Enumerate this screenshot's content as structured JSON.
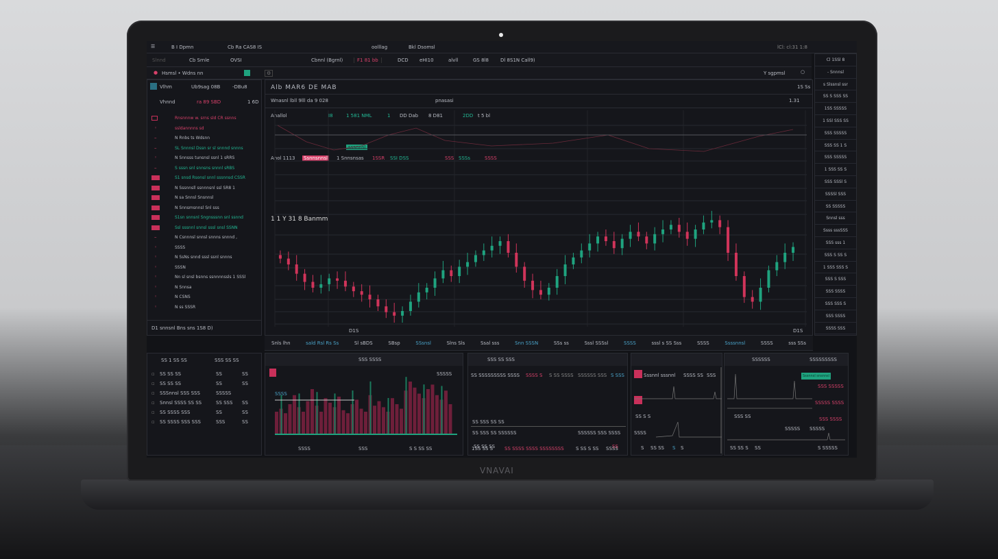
{
  "laptop": {
    "brand": "VNAVAI"
  },
  "top_bar": {
    "tab1": "B I Dpmn",
    "tab2": "Cb Ra CAS8 IS",
    "center": "oolllag",
    "right_title": "Bkl Dsomsl",
    "right_status": "lCl: cl:31 1:8"
  },
  "toolbar": {
    "items": [
      "Slnnd",
      "Cb Srnle",
      "OVSI",
      "Cbnnl (Bgrnl)",
      "F1 81 bb",
      "DCD",
      "eHI10",
      "alvll",
      "GS 8l8",
      "Dl 8S1N Call9)"
    ]
  },
  "row3": {
    "symbol": "Hsmsl • Wdns nn",
    "right": "Y sgpmsl"
  },
  "left": {
    "header": {
      "name": "Vlhm",
      "value": "Ub9sag 08B",
      "change": "-DBu8"
    },
    "sub": {
      "name": "Vhnnd",
      "v1": "ra 89 SBD",
      "v2": "1 6D"
    },
    "items": [
      {
        "text": "Rnsnnnw w. srns sld CR ssnns",
        "color": "red",
        "marker": "chip-outline"
      },
      {
        "text": "ssldannnns sd",
        "color": "red",
        "marker": "dot"
      },
      {
        "text": "N Rnbs ts Wdsnn",
        "color": "",
        "marker": "dash"
      },
      {
        "text": "SL Snnnsl Dssn sr  sl snnnd snnns",
        "color": "grn",
        "marker": "dash"
      },
      {
        "text": "N Snnsss tunsnsl ssnl 1 sRRS",
        "color": "",
        "marker": "dot"
      },
      {
        "text": "S sssn snl snnsns snnnl sRBS",
        "color": "grn",
        "marker": "dash"
      },
      {
        "text": "S1 snsd Rsonsl snnl sssnnsd CSSR",
        "color": "grn",
        "marker": "chip"
      },
      {
        "text": "N Sssnnsll ssnnnsnl ssl SR8 1",
        "color": "",
        "marker": "chip"
      },
      {
        "text": "N sa Snnsl Snsnnsl",
        "color": "",
        "marker": "chip"
      },
      {
        "text": "N Snnsmsnnsl Snl sss",
        "color": "",
        "marker": "chip"
      },
      {
        "text": "S1sn snnsnl Sngnsssnn snl ssnnd",
        "color": "grn",
        "marker": "chip"
      },
      {
        "text": "Ssl sssnnl snnsl sssl snsl SSNN",
        "color": "grn",
        "marker": "chip"
      },
      {
        "text": "N Csnnnsl snnsl snnns snnnd ,",
        "color": "",
        "marker": "dash"
      },
      {
        "text": "SSSS",
        "color": "",
        "marker": "dot"
      },
      {
        "text": "N SsNs snnd  sssl ssnl snnns",
        "color": "",
        "marker": "dot"
      },
      {
        "text": "SSSN",
        "color": "",
        "marker": "dot"
      },
      {
        "text": "Nn sl snsl bsnns ssnnnnssls 1 SSSl",
        "color": "",
        "marker": "dot"
      },
      {
        "text": "N Snnsa",
        "color": "",
        "marker": "dot"
      },
      {
        "text": "N CSNS",
        "color": "",
        "marker": "dot"
      },
      {
        "text": "N ss SSSR",
        "color": "",
        "marker": "dot"
      }
    ],
    "footer": "D1 snnsnl Bns sns 1S8 D)"
  },
  "main": {
    "title": "Alb MAR6 DE MAB",
    "top_right": "1S Ss",
    "subtitle": "Wnasnl lbll 9lll da 9 028",
    "sub_center": "pnasasi",
    "sub_right": "1.31",
    "legend": [
      "Anallol",
      "I8",
      "1 581 NML",
      "1",
      "DD Dab",
      "8 D81",
      "2DD",
      "t 5 bl"
    ],
    "green_tag": "sssnnsl",
    "price_row": {
      "label": "Anol 1113",
      "tag": "Ssnnsnnsl",
      "after": "1 Snnsnsas",
      "r1": "1SSR",
      "g1": "SSI  DSS",
      "r2": "SSS",
      "g2": "SSSs",
      "r3": "SSSS"
    },
    "mid_label": "1 1 Y 31 8 Banmm",
    "x_corner": "D1S",
    "right_label": "D1S"
  },
  "chart_data": {
    "type": "candlestick",
    "closes": [
      55,
      50,
      42,
      35,
      30,
      33,
      38,
      36,
      31,
      27,
      24,
      20,
      14,
      9,
      6,
      10,
      18,
      26,
      30,
      38,
      45,
      40,
      48,
      52,
      58,
      62,
      66,
      70,
      60,
      48,
      36,
      28,
      24,
      30,
      40,
      50,
      56,
      62,
      68,
      74,
      70,
      64,
      72,
      78,
      74,
      68,
      76,
      80,
      84,
      78,
      72,
      80,
      86,
      88,
      82,
      60,
      40,
      22,
      18,
      30,
      45,
      52,
      60,
      65
    ],
    "colors": {
      "up": "#1fa37f",
      "down": "#d0345a"
    },
    "grid": true
  },
  "timeline": [
    "Snls lhn",
    "sald Rsl Rs Ss",
    "Sl sBDS",
    "SBsp",
    "SSsnsl",
    "Slns Sls",
    "Ssal sss",
    "Snn SSSN",
    "SSs ss",
    "Sssl SSSsl",
    "SSSS",
    "sssl s SS Sss",
    "SSSS",
    "Ssssnnsl",
    "SSSS",
    "sss SSs"
  ],
  "right_panel": {
    "items": [
      "Cl 1SSl 8",
      "- Snnnsl",
      "s Slssnsl ssr",
      "SS S SSS SS",
      "1SS SSSSS",
      "1 SSl SSS SS",
      "SSS SSSSS",
      "SSS SS 1 S",
      "SSS SSSSS",
      "1 SSS SS S",
      "SSS SSSl S",
      "SSSSl SSS",
      "SS SSSSS",
      "Snnsl sss",
      "Ssss sssSSS",
      "SSS sss 1",
      "SSS S SS S",
      "1 SSS SSS S",
      "SSS S SSS",
      "SSS SSSS",
      "SSS SSS S",
      "SSS SSSS",
      "SSSS SSS"
    ]
  },
  "bottom_left": {
    "h1": "SS 1 SS SS",
    "h2": "SSS SS SS",
    "rows": [
      [
        "SS SS SS",
        "SS",
        "SS"
      ],
      [
        "SS SS SS",
        "SS",
        "SS"
      ],
      [
        "SSSnnsl SSS SSS",
        "SSSSS",
        ""
      ],
      [
        "Snnsl SSSS SS SS",
        "SS SSS",
        "SS"
      ],
      [
        "SS SSSS SSS",
        "SS",
        "SS"
      ],
      [
        "SS SSSS SSS SSS",
        "SSS",
        "SS"
      ]
    ]
  },
  "bottom_p1": {
    "title": "SSS SSSS",
    "label": "SSSS",
    "peak": "SSSSS",
    "x_labels": [
      "SSSS",
      "SSS",
      "S S SS SS"
    ],
    "bars": [
      30,
      34,
      28,
      40,
      52,
      36,
      30,
      44,
      60,
      38,
      30,
      48,
      42,
      36,
      50,
      32,
      28,
      40,
      46,
      34,
      30,
      52,
      38,
      44,
      36,
      30,
      48,
      40,
      34,
      58,
      70,
      62,
      54,
      48,
      60,
      66,
      52,
      46,
      58,
      40
    ]
  },
  "bottom_p2": {
    "title": "SSS SS SSS",
    "line1": "SS SSSSSSSSS SSSS",
    "line1_red": "SSSS S",
    "line1_b": "S SS SSSS",
    "line1_c": "SSSSSS SSS",
    "line1_d": "S SSS",
    "row2": "SS SSS SS SS",
    "row3a": "SS SSS SS SSSSSS",
    "row3b": "SSSSSS SSS SSSS",
    "row4": "SS SS SS",
    "row4_red": "SS",
    "foot": [
      "1SS SS S",
      "SS SSSS SSSS SSSSSSSS",
      "S SS S SS",
      "SSSS"
    ]
  },
  "bottom_p3": {
    "label": "Sssnnl sssnnl",
    "v1": "SSSS SS",
    "v2": "SSS",
    "row": "SS S S",
    "side": "SSSS",
    "foot": [
      "S",
      "SS SS",
      "S",
      "S"
    ]
  },
  "bottom_p4": {
    "title": "SSSSSS",
    "title_right": "SSSSSSSSS",
    "button": "Sssnnsl snsnnsl",
    "r1": "SSS SSSSS",
    "r2": "SSSSS SSSS",
    "r3": "SSS SSSS",
    "mid": "SSS SS",
    "a": "SSSSS",
    "b": "SSSSS",
    "foot": [
      "SS SS S",
      "SS",
      "S SSSSS"
    ]
  }
}
